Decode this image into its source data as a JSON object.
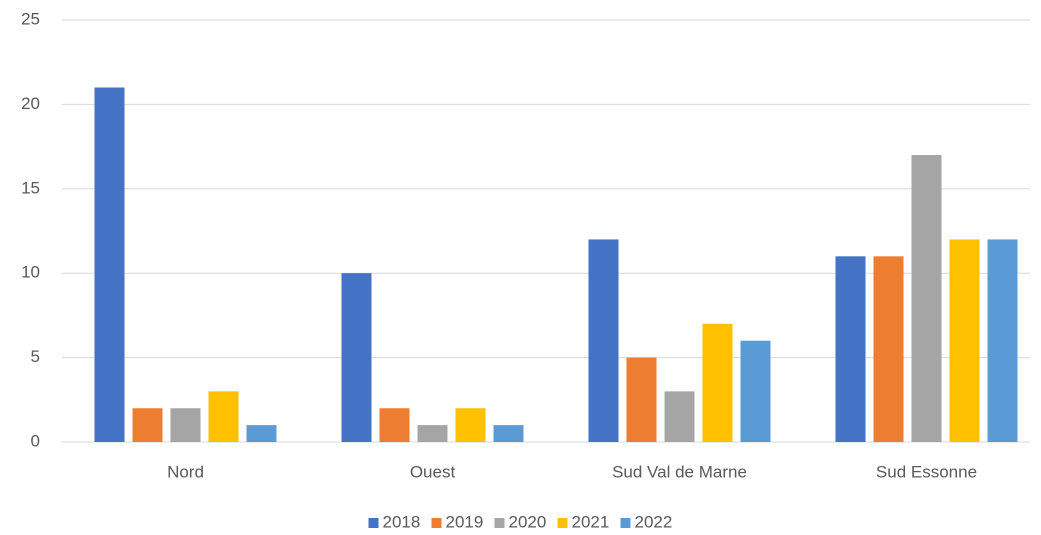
{
  "chart_data": {
    "type": "bar",
    "categories": [
      "Nord",
      "Ouest",
      "Sud Val de Marne",
      "Sud Essonne"
    ],
    "series": [
      {
        "name": "2018",
        "color": "#4472c4",
        "values": [
          21,
          10,
          12,
          11
        ]
      },
      {
        "name": "2019",
        "color": "#ed7d31",
        "values": [
          2,
          2,
          5,
          11
        ]
      },
      {
        "name": "2020",
        "color": "#a5a5a5",
        "values": [
          2,
          1,
          3,
          17
        ]
      },
      {
        "name": "2021",
        "color": "#ffc000",
        "values": [
          3,
          2,
          7,
          12
        ]
      },
      {
        "name": "2022",
        "color": "#5b9bd5",
        "values": [
          1,
          1,
          6,
          12
        ]
      }
    ],
    "ylim": [
      0,
      25
    ],
    "yticks": [
      0,
      5,
      10,
      15,
      20,
      25
    ],
    "grid": true,
    "legend": "bottom"
  }
}
